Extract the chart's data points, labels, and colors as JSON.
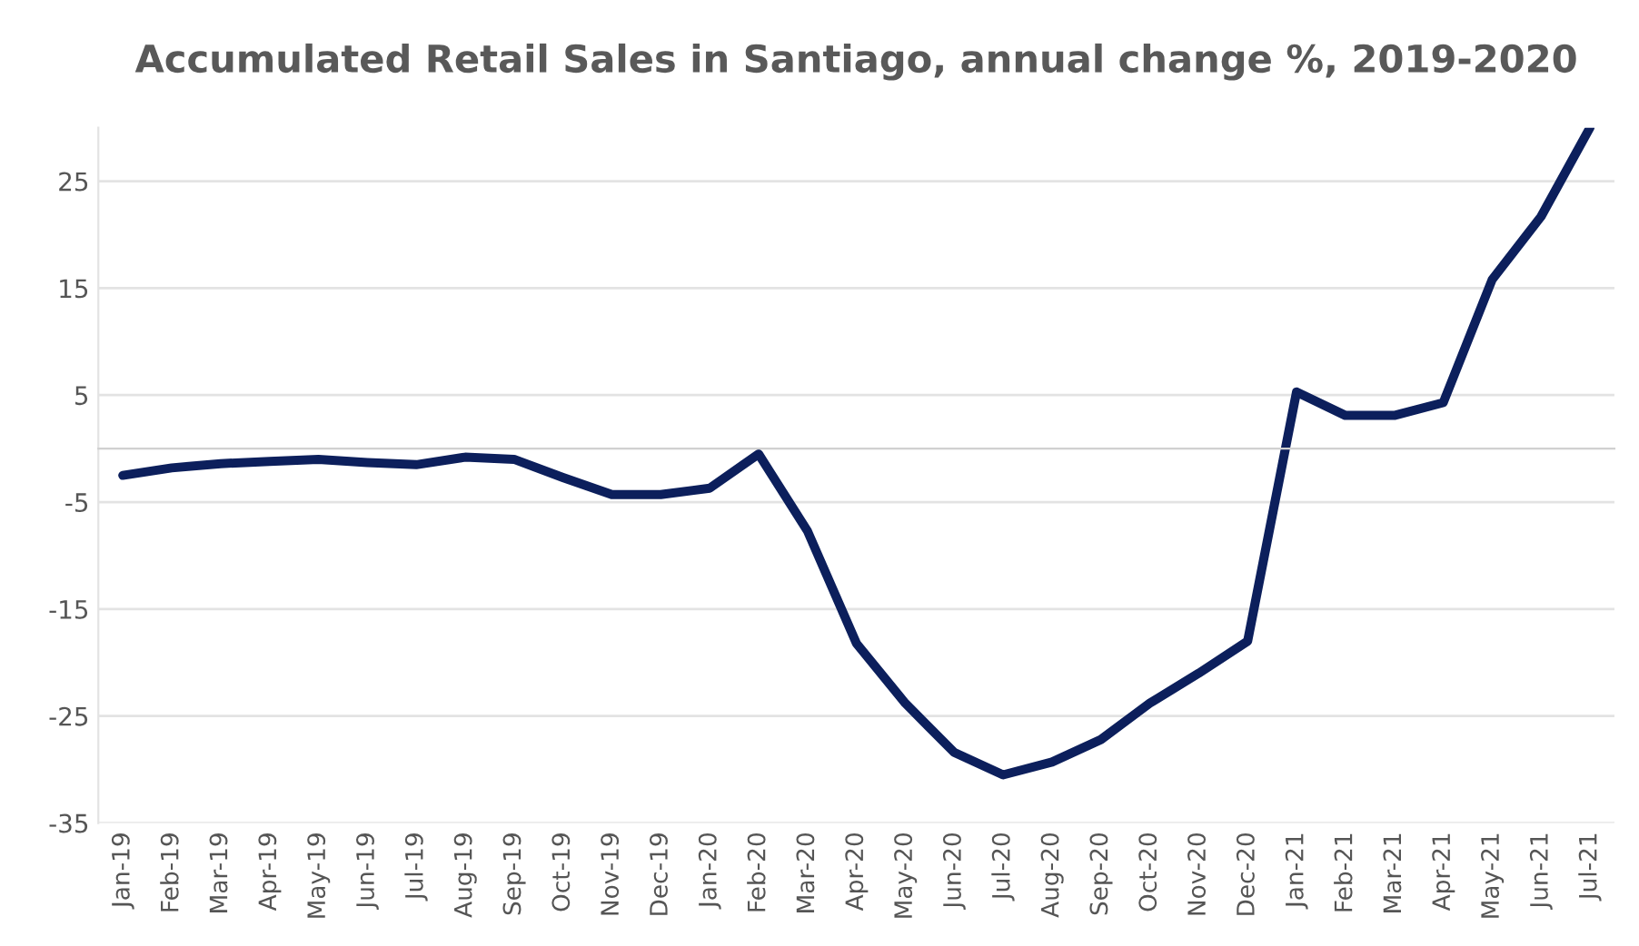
{
  "chart_data": {
    "type": "line",
    "title": "Accumulated Retail Sales in Santiago, annual change %, 2019-2020",
    "categories": [
      "Jan-19",
      "Feb-19",
      "Mar-19",
      "Apr-19",
      "May-19",
      "Jun-19",
      "Jul-19",
      "Aug-19",
      "Sep-19",
      "Oct-19",
      "Nov-19",
      "Dec-19",
      "Jan-20",
      "Feb-20",
      "Mar-20",
      "Apr-20",
      "May-20",
      "Jun-20",
      "Jul-20",
      "Aug-20",
      "Sep-20",
      "Oct-20",
      "Nov-20",
      "Dec-20",
      "Jan-21",
      "Feb-21",
      "Mar-21",
      "Apr-21",
      "May-21",
      "Jun-21",
      "Jul-21"
    ],
    "series": [
      {
        "color": "#0c1f5c",
        "values": [
          -2.5,
          -1.8,
          -1.4,
          -1.2,
          -1.0,
          -1.3,
          -1.5,
          -0.8,
          -1.0,
          -2.7,
          -4.3,
          -4.3,
          -3.7,
          -0.5,
          -7.7,
          -18.2,
          -23.8,
          -28.4,
          -30.5,
          -29.3,
          -27.2,
          -23.8,
          -21.0,
          -18.0,
          5.3,
          3.1,
          3.1,
          4.3,
          15.8,
          21.7,
          30
        ]
      }
    ],
    "ylim": [
      -35,
      30
    ],
    "yticks": [
      -35,
      -25,
      -15,
      -5,
      5,
      15,
      25
    ],
    "grid": "y",
    "legend": false,
    "marker": "none",
    "line_style": "solid"
  }
}
